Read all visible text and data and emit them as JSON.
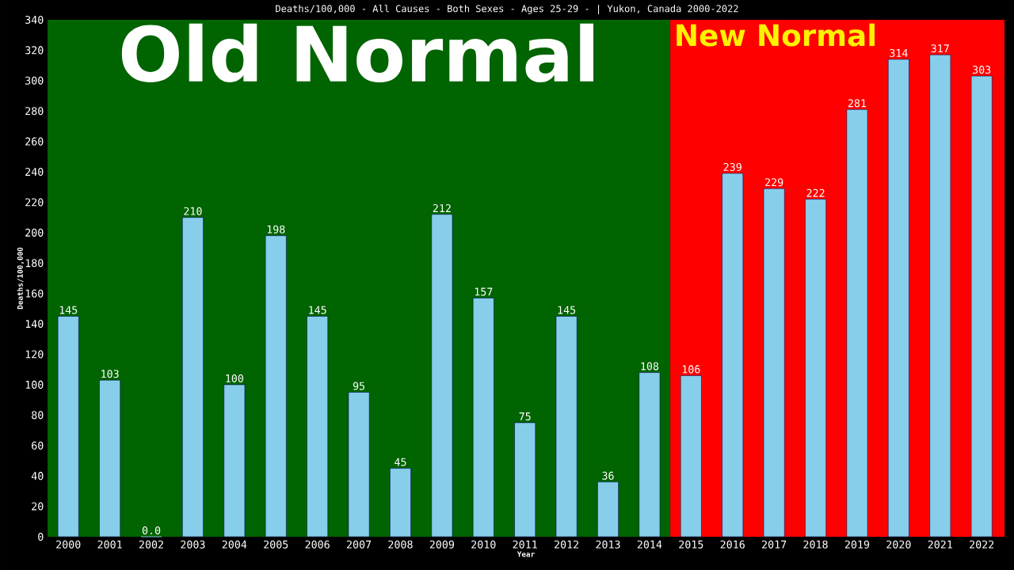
{
  "chart_data": {
    "type": "bar",
    "title": "Deaths/100,000 - All Causes - Both Sexes - Ages 25-29 - | Yukon, Canada 2000-2022",
    "xlabel": "Year",
    "ylabel": "Deaths/100,000",
    "categories": [
      "2000",
      "2001",
      "2002",
      "2003",
      "2004",
      "2005",
      "2006",
      "2007",
      "2008",
      "2009",
      "2010",
      "2011",
      "2012",
      "2013",
      "2014",
      "2015",
      "2016",
      "2017",
      "2018",
      "2019",
      "2020",
      "2021",
      "2022"
    ],
    "values": [
      145,
      103,
      0,
      210,
      100,
      198,
      145,
      95,
      45,
      212,
      157,
      75,
      145,
      36,
      108,
      106,
      239,
      229,
      222,
      281,
      314,
      317,
      303
    ],
    "value_labels": [
      "145",
      "103",
      "0.0",
      "210",
      "100",
      "198",
      "145",
      "95",
      "45",
      "212",
      "157",
      "75",
      "145",
      "36",
      "108",
      "106",
      "239",
      "229",
      "222",
      "281",
      "314",
      "317",
      "303"
    ],
    "color": "#87ceeb",
    "ylim": [
      0,
      340
    ],
    "yticks": [
      0,
      20,
      40,
      60,
      80,
      100,
      120,
      140,
      160,
      180,
      200,
      220,
      240,
      260,
      280,
      300,
      320,
      340
    ],
    "bands": [
      {
        "axis": "x",
        "from": "2000",
        "to": "2014",
        "label": "Old Normal",
        "color": "#006400"
      },
      {
        "axis": "x",
        "from": "2015",
        "to": "2022",
        "label": "New Normal",
        "color": "#ff0000"
      }
    ],
    "grid": false
  }
}
